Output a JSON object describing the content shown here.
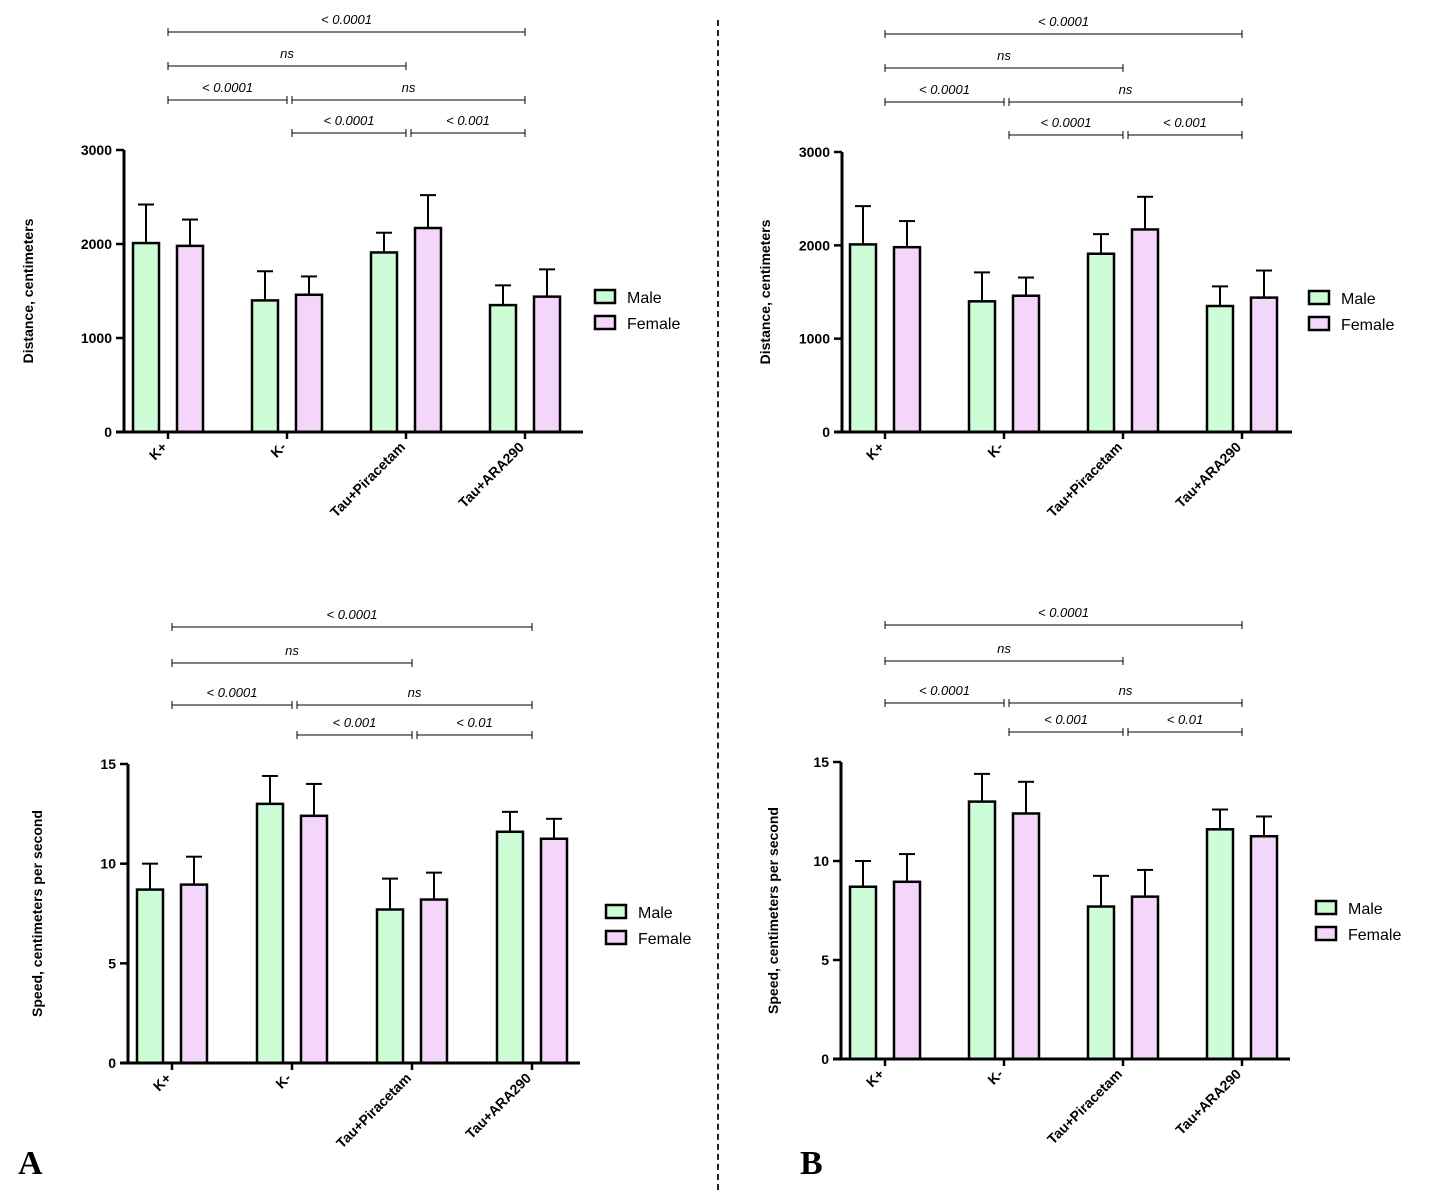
{
  "panels": [
    "A",
    "B"
  ],
  "colors": {
    "male": "#ccfdd6",
    "female": "#f3d6f9",
    "stroke": "#000000"
  },
  "chart_data": [
    {
      "type": "bar",
      "panel": "A",
      "ylabel": "Distance, centimeters",
      "categories": [
        "K+",
        "K-",
        "Tau+Piracetam",
        "Tau+ARA290"
      ],
      "ylim": [
        0,
        3000
      ],
      "yticks": [
        "0",
        "1000",
        "2000",
        "3000"
      ],
      "series": [
        {
          "name": "Male",
          "values": [
            2010,
            1400,
            1910,
            1350
          ],
          "errors": [
            410,
            310,
            210,
            210
          ]
        },
        {
          "name": "Female",
          "values": [
            1980,
            1460,
            2170,
            1440
          ],
          "errors": [
            280,
            195,
            350,
            290
          ]
        }
      ],
      "legend": "right",
      "comparisons": [
        {
          "from": 0,
          "to": 3,
          "label": "< 0.0001"
        },
        {
          "from": 0,
          "to": 2,
          "label": "ns"
        },
        {
          "from": 0,
          "to": 1,
          "label": "< 0.0001"
        },
        {
          "from": 1,
          "to": 3,
          "label": "ns"
        },
        {
          "from": 1,
          "to": 2,
          "label": "< 0.0001"
        },
        {
          "from": 2,
          "to": 3,
          "label": "< 0.001"
        }
      ]
    },
    {
      "type": "bar",
      "panel": "B",
      "ylabel": "Distance, centimeters",
      "categories": [
        "K+",
        "K-",
        "Tau+Piracetam",
        "Tau+ARA290"
      ],
      "ylim": [
        0,
        3000
      ],
      "yticks": [
        "0",
        "1000",
        "2000",
        "3000"
      ],
      "series": [
        {
          "name": "Male",
          "values": [
            2010,
            1400,
            1910,
            1350
          ],
          "errors": [
            410,
            310,
            210,
            210
          ]
        },
        {
          "name": "Female",
          "values": [
            1980,
            1460,
            2170,
            1440
          ],
          "errors": [
            280,
            195,
            350,
            290
          ]
        }
      ],
      "legend": "right",
      "comparisons": [
        {
          "from": 0,
          "to": 3,
          "label": "< 0.0001"
        },
        {
          "from": 0,
          "to": 2,
          "label": "ns"
        },
        {
          "from": 0,
          "to": 1,
          "label": "< 0.0001"
        },
        {
          "from": 1,
          "to": 3,
          "label": "ns"
        },
        {
          "from": 1,
          "to": 2,
          "label": "< 0.0001"
        },
        {
          "from": 2,
          "to": 3,
          "label": "< 0.001"
        }
      ]
    },
    {
      "type": "bar",
      "panel": "A",
      "ylabel": "Speed, centimeters per second",
      "categories": [
        "K+",
        "K-",
        "Tau+Piracetam",
        "Tau+ARA290"
      ],
      "ylim": [
        0,
        15
      ],
      "yticks": [
        "0",
        "5",
        "10",
        "15"
      ],
      "series": [
        {
          "name": "Male",
          "values": [
            8.7,
            13.0,
            7.7,
            11.6
          ],
          "errors": [
            1.3,
            1.4,
            1.55,
            1.0
          ]
        },
        {
          "name": "Female",
          "values": [
            8.95,
            12.4,
            8.2,
            11.25
          ],
          "errors": [
            1.4,
            1.6,
            1.35,
            1.0
          ]
        }
      ],
      "legend": "right",
      "comparisons": [
        {
          "from": 0,
          "to": 3,
          "label": "< 0.0001"
        },
        {
          "from": 0,
          "to": 2,
          "label": "ns"
        },
        {
          "from": 0,
          "to": 1,
          "label": "< 0.0001"
        },
        {
          "from": 1,
          "to": 3,
          "label": "ns"
        },
        {
          "from": 1,
          "to": 2,
          "label": "< 0.001"
        },
        {
          "from": 2,
          "to": 3,
          "label": "< 0.01"
        }
      ]
    },
    {
      "type": "bar",
      "panel": "B",
      "ylabel": "Speed, centimeters per second",
      "categories": [
        "K+",
        "K-",
        "Tau+Piracetam",
        "Tau+ARA290"
      ],
      "ylim": [
        0,
        15
      ],
      "yticks": [
        "0",
        "5",
        "10",
        "15"
      ],
      "series": [
        {
          "name": "Male",
          "values": [
            8.7,
            13.0,
            7.7,
            11.6
          ],
          "errors": [
            1.3,
            1.4,
            1.55,
            1.0
          ]
        },
        {
          "name": "Female",
          "values": [
            8.95,
            12.4,
            8.2,
            11.25
          ],
          "errors": [
            1.4,
            1.6,
            1.35,
            1.0
          ]
        }
      ],
      "legend": "right",
      "comparisons": [
        {
          "from": 0,
          "to": 3,
          "label": "< 0.0001"
        },
        {
          "from": 0,
          "to": 2,
          "label": "ns"
        },
        {
          "from": 0,
          "to": 1,
          "label": "< 0.0001"
        },
        {
          "from": 1,
          "to": 3,
          "label": "ns"
        },
        {
          "from": 1,
          "to": 2,
          "label": "< 0.001"
        },
        {
          "from": 2,
          "to": 3,
          "label": "< 0.01"
        }
      ]
    }
  ]
}
